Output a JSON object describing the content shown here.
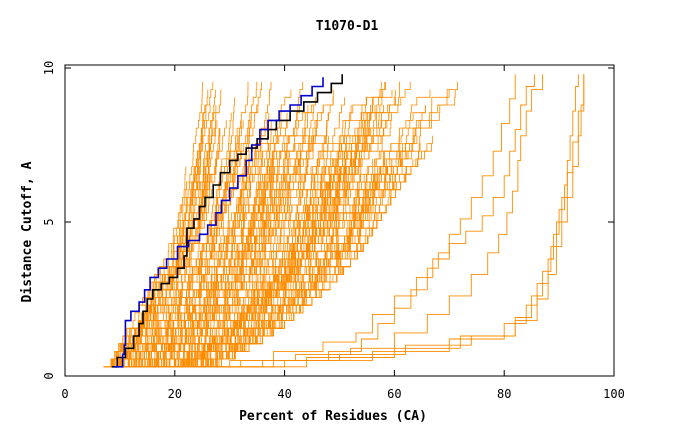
{
  "chart_data": {
    "type": "line",
    "title": "T1070-D1",
    "xlabel": "Percent of Residues (CA)",
    "ylabel": "Distance Cutoff, A",
    "xlim": [
      0,
      100
    ],
    "ylim": [
      0,
      10
    ],
    "x_ticks": [
      0,
      20,
      40,
      60,
      80,
      100
    ],
    "y_ticks": [
      0,
      5,
      10
    ],
    "grid": false,
    "legend": "none",
    "colors": {
      "background": "#ffffff",
      "axis": "#000000",
      "models": "#ff8c00",
      "highlight_black": "#000000",
      "highlight_blue": "#0000cc"
    },
    "highlighted_series": [
      {
        "color": "#000000",
        "points": [
          [
            8.5,
            0.3
          ],
          [
            9.5,
            0.6
          ],
          [
            11,
            0.9
          ],
          [
            12.5,
            1.3
          ],
          [
            13.5,
            1.7
          ],
          [
            14.2,
            2.1
          ],
          [
            15,
            2.5
          ],
          [
            16,
            2.8
          ],
          [
            17.5,
            3.0
          ],
          [
            19,
            3.2
          ],
          [
            20.5,
            3.5
          ],
          [
            21.7,
            3.9
          ],
          [
            22.2,
            4.3
          ],
          [
            22.2,
            4.8
          ],
          [
            23.5,
            5.1
          ],
          [
            24.5,
            5.5
          ],
          [
            25.5,
            5.8
          ],
          [
            27,
            6.2
          ],
          [
            28.3,
            6.6
          ],
          [
            30,
            7.0
          ],
          [
            31.5,
            7.2
          ],
          [
            33,
            7.4
          ],
          [
            35,
            7.7
          ],
          [
            37,
            8.0
          ],
          [
            38.5,
            8.3
          ],
          [
            41,
            8.6
          ],
          [
            43.5,
            8.9
          ],
          [
            46,
            9.2
          ],
          [
            48.5,
            9.5
          ],
          [
            50.5,
            9.8
          ]
        ]
      },
      {
        "color": "#0000cc",
        "points": [
          [
            9,
            0.3
          ],
          [
            10.5,
            0.7
          ],
          [
            10.8,
            1.0
          ],
          [
            11,
            1.4
          ],
          [
            11,
            1.8
          ],
          [
            12,
            2.1
          ],
          [
            13.5,
            2.4
          ],
          [
            14.5,
            2.8
          ],
          [
            15.5,
            3.2
          ],
          [
            17,
            3.5
          ],
          [
            18.5,
            3.8
          ],
          [
            20.5,
            4.2
          ],
          [
            22.5,
            4.4
          ],
          [
            24.5,
            4.6
          ],
          [
            26,
            4.9
          ],
          [
            27.5,
            5.3
          ],
          [
            28.5,
            5.7
          ],
          [
            30,
            6.1
          ],
          [
            31.5,
            6.5
          ],
          [
            33,
            7.0
          ],
          [
            34,
            7.5
          ],
          [
            35.5,
            8.0
          ],
          [
            37,
            8.3
          ],
          [
            39,
            8.6
          ],
          [
            41,
            8.8
          ],
          [
            43,
            9.1
          ],
          [
            45,
            9.4
          ],
          [
            47,
            9.7
          ]
        ]
      }
    ],
    "orange_bundle": {
      "count": 160,
      "left_bound": [
        [
          7,
          0.3
        ],
        [
          9,
          0.8
        ],
        [
          10.5,
          1.3
        ],
        [
          12,
          1.8
        ],
        [
          14,
          2.5
        ],
        [
          16,
          3.2
        ],
        [
          18,
          3.8
        ],
        [
          19,
          4.5
        ],
        [
          20,
          5.2
        ],
        [
          20.5,
          6.0
        ],
        [
          21,
          7.0
        ],
        [
          21.3,
          8.0
        ],
        [
          21.6,
          9.0
        ],
        [
          22,
          9.8
        ]
      ],
      "right_bound": [
        [
          26,
          0.3
        ],
        [
          31,
          0.8
        ],
        [
          36,
          1.3
        ],
        [
          40,
          1.8
        ],
        [
          44,
          2.4
        ],
        [
          48,
          3.0
        ],
        [
          51,
          3.6
        ],
        [
          54,
          4.2
        ],
        [
          56,
          4.8
        ],
        [
          58,
          5.4
        ],
        [
          60,
          6.0
        ],
        [
          63,
          6.8
        ],
        [
          67,
          7.6
        ],
        [
          70,
          8.4
        ],
        [
          73,
          9.0
        ],
        [
          77,
          9.8
        ]
      ]
    },
    "outlier_series": [
      {
        "color": "#ff8c00",
        "points": [
          [
            24,
            0.3
          ],
          [
            30,
            0.5
          ],
          [
            38,
            0.8
          ],
          [
            47,
            1.1
          ],
          [
            53,
            1.4
          ],
          [
            56,
            2.0
          ],
          [
            60,
            2.6
          ],
          [
            64,
            3.2
          ],
          [
            67,
            3.8
          ],
          [
            70,
            4.3
          ],
          [
            73,
            4.7
          ],
          [
            76,
            5.2
          ],
          [
            78,
            5.8
          ],
          [
            80,
            6.5
          ],
          [
            81,
            7.3
          ],
          [
            82,
            8.0
          ],
          [
            83,
            8.8
          ],
          [
            84,
            9.4
          ],
          [
            85.5,
            9.8
          ]
        ]
      },
      {
        "color": "#ff8c00",
        "points": [
          [
            24,
            0.3
          ],
          [
            32,
            0.5
          ],
          [
            42,
            0.7
          ],
          [
            52,
            0.9
          ],
          [
            60,
            1.4
          ],
          [
            66,
            2.0
          ],
          [
            70,
            2.6
          ],
          [
            74,
            3.3
          ],
          [
            77,
            4.0
          ],
          [
            79,
            4.6
          ],
          [
            80.5,
            5.3
          ],
          [
            81.5,
            6.0
          ],
          [
            82.5,
            7.0
          ],
          [
            83,
            7.8
          ],
          [
            84,
            8.6
          ],
          [
            85,
            9.3
          ],
          [
            87,
            9.8
          ]
        ]
      },
      {
        "color": "#ff8c00",
        "points": [
          [
            25,
            0.3
          ],
          [
            40,
            0.5
          ],
          [
            56,
            0.8
          ],
          [
            70,
            1.2
          ],
          [
            80,
            1.7
          ],
          [
            84,
            2.3
          ],
          [
            86,
            3.0
          ],
          [
            88,
            3.8
          ],
          [
            89,
            4.6
          ],
          [
            90,
            5.4
          ],
          [
            91,
            6.2
          ],
          [
            91.5,
            7.0
          ],
          [
            92,
            7.8
          ],
          [
            92.5,
            8.6
          ],
          [
            93,
            9.4
          ],
          [
            93.5,
            9.8
          ]
        ]
      },
      {
        "color": "#ff8c00",
        "points": [
          [
            26,
            0.3
          ],
          [
            44,
            0.6
          ],
          [
            60,
            0.9
          ],
          [
            72,
            1.3
          ],
          [
            82,
            1.8
          ],
          [
            86,
            2.5
          ],
          [
            88,
            3.3
          ],
          [
            89.5,
            4.2
          ],
          [
            90.5,
            5.0
          ],
          [
            91.5,
            5.8
          ],
          [
            92.5,
            6.8
          ],
          [
            93.5,
            7.8
          ],
          [
            94,
            8.8
          ],
          [
            94.5,
            9.8
          ]
        ]
      },
      {
        "color": "#ff8c00",
        "points": [
          [
            24,
            0.3
          ],
          [
            36,
            0.5
          ],
          [
            50,
            0.7
          ],
          [
            62,
            1.0
          ],
          [
            74,
            1.3
          ],
          [
            82,
            1.9
          ],
          [
            85,
            2.6
          ],
          [
            87,
            3.4
          ],
          [
            88.5,
            4.2
          ],
          [
            89.5,
            5.0
          ],
          [
            90.5,
            5.8
          ],
          [
            91.5,
            6.6
          ],
          [
            92.5,
            7.6
          ],
          [
            93.5,
            8.6
          ],
          [
            94.5,
            9.8
          ]
        ]
      },
      {
        "color": "#ff8c00",
        "points": [
          [
            25,
            0.3
          ],
          [
            38,
            0.5
          ],
          [
            48,
            0.8
          ],
          [
            54,
            1.2
          ],
          [
            57,
            1.7
          ],
          [
            60,
            2.2
          ],
          [
            63,
            2.8
          ],
          [
            66,
            3.5
          ],
          [
            68,
            4.0
          ],
          [
            70,
            4.6
          ],
          [
            72,
            5.1
          ],
          [
            74,
            5.8
          ],
          [
            76,
            6.5
          ],
          [
            78,
            7.3
          ],
          [
            79.5,
            8.2
          ],
          [
            81,
            9.0
          ],
          [
            82,
            9.8
          ]
        ]
      }
    ]
  }
}
